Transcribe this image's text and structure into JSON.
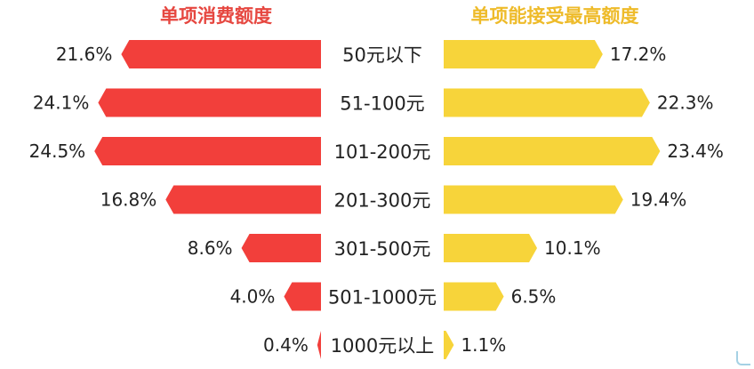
{
  "chart_data": {
    "type": "bar",
    "orientation": "butterfly",
    "categories": [
      "50元以下",
      "51-100元",
      "101-200元",
      "201-300元",
      "301-500元",
      "501-1000元",
      "1000元以上"
    ],
    "series": [
      {
        "name": "单项消费额度",
        "values": [
          21.6,
          24.1,
          24.5,
          16.8,
          8.6,
          4.0,
          0.4
        ],
        "labels": [
          "21.6%",
          "24.1%",
          "24.5%",
          "16.8%",
          "8.6%",
          "4.0%",
          "0.4%"
        ],
        "side": "left",
        "color": "#f23f3b",
        "title_color": "#e64740"
      },
      {
        "name": "单项能接受最高额度",
        "values": [
          17.2,
          22.3,
          23.4,
          19.4,
          10.1,
          6.5,
          1.1
        ],
        "labels": [
          "17.2%",
          "22.3%",
          "23.4%",
          "19.4%",
          "10.1%",
          "6.5%",
          "1.1%"
        ],
        "side": "right",
        "color": "#f7d43a",
        "title_color": "#eebb2a"
      }
    ],
    "unit": "%",
    "grid": false,
    "legend": "top"
  }
}
